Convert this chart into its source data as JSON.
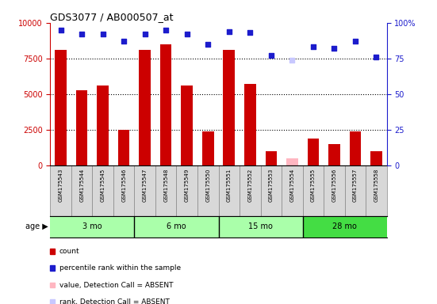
{
  "title": "GDS3077 / AB000507_at",
  "samples": [
    "GSM175543",
    "GSM175544",
    "GSM175545",
    "GSM175546",
    "GSM175547",
    "GSM175548",
    "GSM175549",
    "GSM175550",
    "GSM175551",
    "GSM175552",
    "GSM175553",
    "GSM175554",
    "GSM175555",
    "GSM175556",
    "GSM175557",
    "GSM175558"
  ],
  "counts": [
    8100,
    5300,
    5600,
    2500,
    8100,
    8500,
    5600,
    2400,
    8100,
    5700,
    1000,
    500,
    1900,
    1500,
    2400,
    1000
  ],
  "percentiles": [
    95,
    92,
    92,
    87,
    92,
    95,
    92,
    85,
    94,
    93,
    77,
    74,
    83,
    82,
    87,
    76
  ],
  "absent_indices": [
    11
  ],
  "bar_color_normal": "#CC0000",
  "bar_color_absent": "#FFB6C1",
  "dot_color_normal": "#1C1CCC",
  "dot_color_absent": "#C8C8FF",
  "ylim_left": [
    0,
    10000
  ],
  "ylim_right": [
    0,
    100
  ],
  "yticks_left": [
    0,
    2500,
    5000,
    7500,
    10000
  ],
  "yticks_right": [
    0,
    25,
    50,
    75,
    100
  ],
  "ytick_labels_left": [
    "0",
    "2500",
    "5000",
    "7500",
    "10000"
  ],
  "ytick_labels_right": [
    "0",
    "25",
    "50",
    "75",
    "100%"
  ],
  "age_groups": [
    {
      "label": "3 mo",
      "start": 0,
      "end": 4,
      "color": "#AAFFAA"
    },
    {
      "label": "6 mo",
      "start": 4,
      "end": 8,
      "color": "#AAFFAA"
    },
    {
      "label": "15 mo",
      "start": 8,
      "end": 12,
      "color": "#AAFFAA"
    },
    {
      "label": "28 mo",
      "start": 12,
      "end": 16,
      "color": "#44DD44"
    }
  ],
  "age_label": "age",
  "legend_items": [
    {
      "color": "#CC0000",
      "label": "count"
    },
    {
      "color": "#1C1CCC",
      "label": "percentile rank within the sample"
    },
    {
      "color": "#FFB6C1",
      "label": "value, Detection Call = ABSENT"
    },
    {
      "color": "#C8C8FF",
      "label": "rank, Detection Call = ABSENT"
    }
  ],
  "background_color": "#FFFFFF",
  "tick_color_left": "#CC0000",
  "tick_color_right": "#1C1CCC",
  "bar_width": 0.55,
  "sample_box_color": "#D8D8D8",
  "grid_line_color": "black",
  "title_fontsize": 9,
  "tick_fontsize": 7,
  "label_fontsize": 7
}
